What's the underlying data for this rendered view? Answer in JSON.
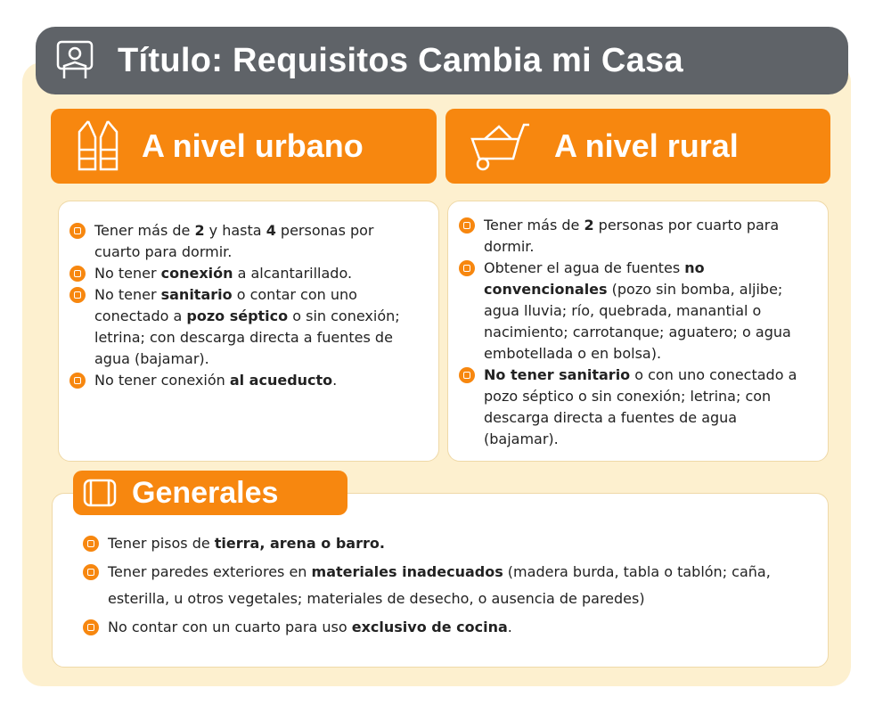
{
  "header": {
    "title": "Título: Requisitos Cambia mi Casa"
  },
  "sections": [
    {
      "title": "A nivel urbano",
      "items": [
        [
          {
            "text": "Tener más de "
          },
          {
            "text": "2",
            "bold": true
          },
          {
            "text": " y hasta "
          },
          {
            "text": "4",
            "bold": true
          },
          {
            "text": " personas por cuarto para dormir."
          }
        ],
        [
          {
            "text": "No tener "
          },
          {
            "text": "conexión",
            "bold": true
          },
          {
            "text": " a alcantarillado."
          }
        ],
        [
          {
            "text": "No tener "
          },
          {
            "text": "sanitario",
            "bold": true
          },
          {
            "text": " o contar con uno conectado a "
          },
          {
            "text": "pozo séptico",
            "bold": true
          },
          {
            "text": " o sin conexión; letrina; con descarga directa a fuentes de agua (bajamar)."
          }
        ],
        [
          {
            "text": "No tener conexión "
          },
          {
            "text": "al acueducto",
            "bold": true
          },
          {
            "text": "."
          }
        ]
      ]
    },
    {
      "title": "A nivel rural",
      "items": [
        [
          {
            "text": "Tener más de "
          },
          {
            "text": "2",
            "bold": true
          },
          {
            "text": " personas por cuarto para dormir."
          }
        ],
        [
          {
            "text": "Obtener el agua de fuentes "
          },
          {
            "text": "no convencionales",
            "bold": true
          },
          {
            "text": " (pozo sin bomba, aljibe; agua lluvia; río, quebrada, manantial o nacimiento; carrotanque; aguatero; o agua embotellada o en bolsa)."
          }
        ],
        [
          {
            "text": "No tener sanitario",
            "bold": true
          },
          {
            "text": " o con uno conectado a pozo séptico o sin conexión; letrina; con descarga directa a fuentes de agua (bajamar)."
          }
        ]
      ]
    },
    {
      "title": "Generales",
      "items": [
        [
          {
            "text": "Tener pisos de "
          },
          {
            "text": "tierra, arena o barro.",
            "bold": true
          }
        ],
        [
          {
            "text": "Tener paredes exteriores en "
          },
          {
            "text": "materiales inadecuados",
            "bold": true
          },
          {
            "text": " (madera burda, tabla o tablón; caña, esterilla, u otros vegetales; materiales de desecho, o ausencia de paredes)"
          }
        ],
        [
          {
            "text": "No contar con un cuarto para uso "
          },
          {
            "text": "exclusivo de cocina",
            "bold": true
          },
          {
            "text": "."
          }
        ]
      ]
    }
  ]
}
